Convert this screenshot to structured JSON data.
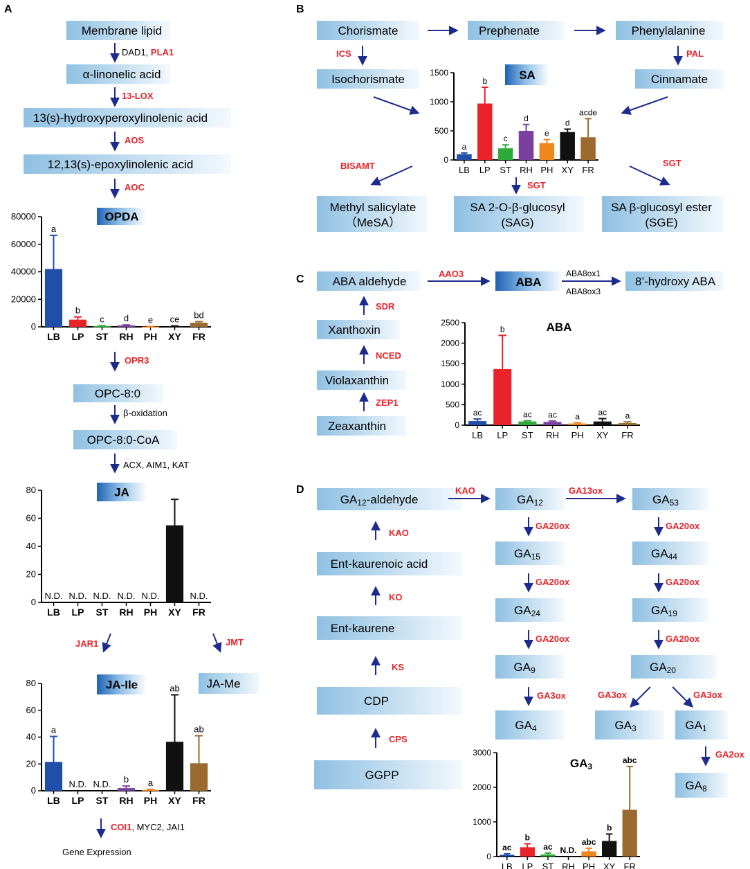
{
  "colors": {
    "enzyme": "#e8232a",
    "arrow": "#1c2b8c",
    "box_light": "#dcedf8",
    "box_dark": "#8fc0e2",
    "chemical": "#1a1a1a"
  },
  "tissues": [
    "LB",
    "LP",
    "ST",
    "RH",
    "PH",
    "XY",
    "FR"
  ],
  "tissue_colors": [
    "#1f4fa8",
    "#e8232a",
    "#2faa3a",
    "#7b3fa0",
    "#f2861e",
    "#111111",
    "#9a6a2e"
  ],
  "panels": {
    "A": "A",
    "B": "B",
    "C": "C",
    "D": "D"
  },
  "panel_a": {
    "boxes": {
      "membrane": "Membrane lipid",
      "alinolenic": "α-linonelic acid",
      "hpot": "13(s)-hydroxyperoxylinolenic acid",
      "epox": "12,13(s)-epoxylinolenic acid",
      "opc8": "OPC-8:0",
      "opc8coa": "OPC-8:0-CoA",
      "jame": "JA-Me"
    },
    "steps": {
      "dad1": "DAD1, ",
      "pla1": "PLA1",
      "lox": "13-LOX",
      "aos": "AOS",
      "aoc": "AOC",
      "opr3": "OPR3",
      "boxidation": "β-oxidation",
      "acx": "ACX, AIM1, KAT",
      "jar1": "JAR1",
      "jmt": "JMT",
      "coi1": "COI1",
      "myc2": ", MYC2, JAI1",
      "gene_expression": "Gene Expression"
    }
  },
  "panel_b": {
    "boxes": {
      "chorismate": "Chorismate",
      "prephenate": "Prephenate",
      "phenylalanine": "Phenylalanine",
      "isochorismate": "Isochorismate",
      "cinnamate": "Cinnamate",
      "mesa_1": "Methyl salicylate",
      "mesa_2": "（MeSA）",
      "sag_1": "SA 2-O-β-glucosyl",
      "sag_2": "(SAG)",
      "sge_1": "SA β-glucosyl ester",
      "sge_2": "(SGE)"
    },
    "steps": {
      "ics": "ICS",
      "pal": "PAL",
      "bisamt": "BISAMT",
      "sgt_mid": "SGT",
      "sgt_right": "SGT"
    }
  },
  "panel_c": {
    "boxes": {
      "aba_aldehyde": "ABA aldehyde",
      "hydroxy_aba": "8’-hydroxy ABA",
      "xanthoxin": "Xanthoxin",
      "violaxanthin": "Violaxanthin",
      "zeaxanthin": "Zeaxanthin"
    },
    "steps": {
      "aao3": "AAO3",
      "aba8ox1": "ABA8ox1",
      "aba8ox3": "ABA8ox3",
      "sdr": "SDR",
      "nced": "NCED",
      "zep1": "ZEP1"
    }
  },
  "panel_d": {
    "boxes": {
      "ga12_ald": "GA",
      "ga12_ald_sub": "12",
      "ga12_ald_suffix": "-aldehyde",
      "entacid": "Ent-kaurenoic acid",
      "entk": "Ent-kaurene",
      "cdp": "CDP",
      "ggpp": "GGPP",
      "ga_prefix": "GA",
      "ga12_sub": "12",
      "ga15_sub": "15",
      "ga24_sub": "24",
      "ga9_sub": "9",
      "ga4_sub": "4",
      "ga53_sub": "53",
      "ga44_sub": "44",
      "ga19_sub": "19",
      "ga20_sub": "20",
      "ga3_sub": "3",
      "ga1_sub": "1",
      "ga8_sub": "8"
    },
    "steps": {
      "kao_h": "KAO",
      "ga13ox": "GA13ox",
      "kao_v": "KAO",
      "ko": "KO",
      "ks": "KS",
      "cps": "CPS",
      "ga20ox": "GA20ox",
      "ga3ox": "GA3ox",
      "ga2ox": "GA2ox"
    }
  },
  "chart_data": [
    {
      "id": "opda",
      "type": "bar",
      "title": "OPDA",
      "categories": [
        "LB",
        "LP",
        "ST",
        "RH",
        "PH",
        "XY",
        "FR"
      ],
      "values": [
        42000,
        5200,
        500,
        1100,
        200,
        500,
        3000
      ],
      "errors": [
        24500,
        2000,
        300,
        300,
        100,
        200,
        800
      ],
      "labels": [
        "a",
        "b",
        "c",
        "d",
        "e",
        "ce",
        "bd"
      ],
      "ylim": [
        0,
        80000
      ],
      "yticks": [
        0,
        20000,
        40000,
        60000,
        80000
      ],
      "xlabel": "",
      "ylabel": ""
    },
    {
      "id": "ja",
      "type": "bar",
      "title": "JA",
      "categories": [
        "LB",
        "LP",
        "ST",
        "RH",
        "PH",
        "XY",
        "FR"
      ],
      "values": [
        0,
        0,
        0,
        0,
        0,
        55,
        0
      ],
      "errors": [
        0,
        0,
        0,
        0,
        0,
        18.5,
        0
      ],
      "labels": [
        "N.D.",
        "N.D.",
        "N.D.",
        "N.D.",
        "N.D.",
        "",
        "N.D."
      ],
      "ylim": [
        0,
        80
      ],
      "yticks": [
        0,
        20,
        40,
        60,
        80
      ],
      "xlabel": "",
      "ylabel": ""
    },
    {
      "id": "jaile",
      "type": "bar",
      "title": "JA-Ile",
      "categories": [
        "LB",
        "LP",
        "ST",
        "RH",
        "PH",
        "XY",
        "FR"
      ],
      "values": [
        21.5,
        0,
        0,
        2,
        0.6,
        36.5,
        20.5
      ],
      "errors": [
        19,
        0,
        0,
        1.5,
        0.5,
        35,
        20.5
      ],
      "labels": [
        "a",
        "N.D.",
        "N.D.",
        "b",
        "a",
        "ab",
        "ab"
      ],
      "ylim": [
        0,
        80
      ],
      "yticks": [
        0,
        20,
        40,
        60,
        80
      ],
      "xlabel": "",
      "ylabel": ""
    },
    {
      "id": "sa",
      "type": "bar",
      "title": "SA",
      "categories": [
        "LB",
        "LP",
        "ST",
        "RH",
        "PH",
        "XY",
        "FR"
      ],
      "values": [
        100,
        970,
        200,
        500,
        290,
        480,
        390
      ],
      "errors": [
        20,
        280,
        60,
        110,
        60,
        50,
        320
      ],
      "labels": [
        "a",
        "b",
        "c",
        "d",
        "e",
        "d",
        "acde"
      ],
      "ylim": [
        0,
        1500
      ],
      "yticks": [
        0,
        500,
        1000,
        1500
      ],
      "xlabel": "",
      "ylabel": ""
    },
    {
      "id": "aba",
      "type": "bar",
      "title": "ABA",
      "categories": [
        "LB",
        "LP",
        "ST",
        "RH",
        "PH",
        "XY",
        "FR"
      ],
      "values": [
        100,
        1370,
        90,
        80,
        40,
        90,
        50
      ],
      "errors": [
        50,
        820,
        20,
        20,
        20,
        70,
        30
      ],
      "labels": [
        "ac",
        "b",
        "ac",
        "ac",
        "a",
        "ac",
        "a"
      ],
      "ylim": [
        0,
        2500
      ],
      "yticks": [
        0,
        500,
        1000,
        1500,
        2000,
        2500
      ],
      "xlabel": "",
      "ylabel": ""
    },
    {
      "id": "ga3",
      "type": "bar",
      "title": "GA",
      "title_sub": "3",
      "categories": [
        "LB",
        "LP",
        "ST",
        "RH",
        "PH",
        "XY",
        "FR"
      ],
      "values": [
        50,
        270,
        60,
        0,
        150,
        450,
        1350
      ],
      "errors": [
        30,
        100,
        40,
        0,
        90,
        200,
        1250
      ],
      "labels": [
        "ac",
        "b",
        "ac",
        "N.D.",
        "abc",
        "b",
        "abc"
      ],
      "ylim": [
        0,
        3000
      ],
      "yticks": [
        0,
        1000,
        2000,
        3000
      ],
      "xlabel": "",
      "ylabel": ""
    }
  ]
}
